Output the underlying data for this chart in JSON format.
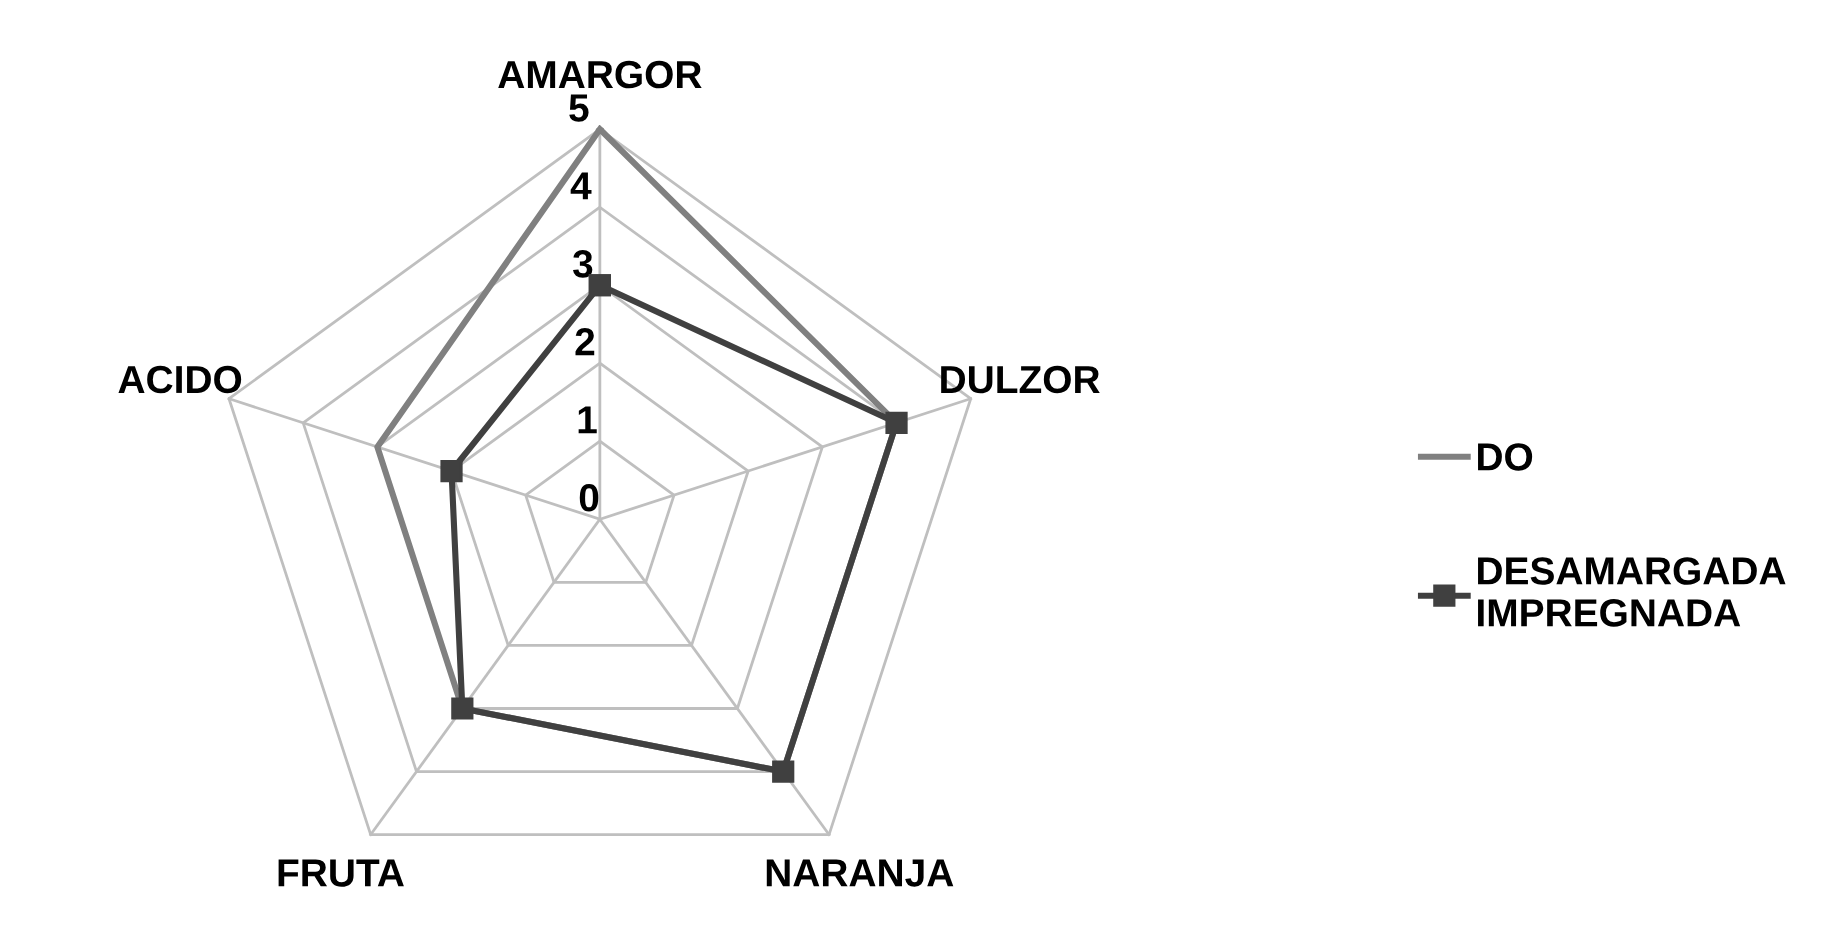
{
  "chart_data": {
    "type": "radar",
    "categories": [
      "AMARGOR",
      "DULZOR",
      "NARANJA",
      "FRUTA",
      "ACIDO"
    ],
    "series": [
      {
        "name": "DO",
        "color": "#808080",
        "marker": "none",
        "values": [
          5,
          4,
          4,
          3,
          3
        ]
      },
      {
        "name": "DESAMARGADA IMPREGNADA",
        "color": "#404040",
        "marker": "square",
        "values": [
          3,
          4,
          4,
          3,
          2
        ]
      }
    ],
    "ylim": [
      0,
      5
    ],
    "yticks": [
      0,
      1,
      2,
      3,
      4,
      5
    ],
    "grid": true,
    "legend": "right"
  }
}
